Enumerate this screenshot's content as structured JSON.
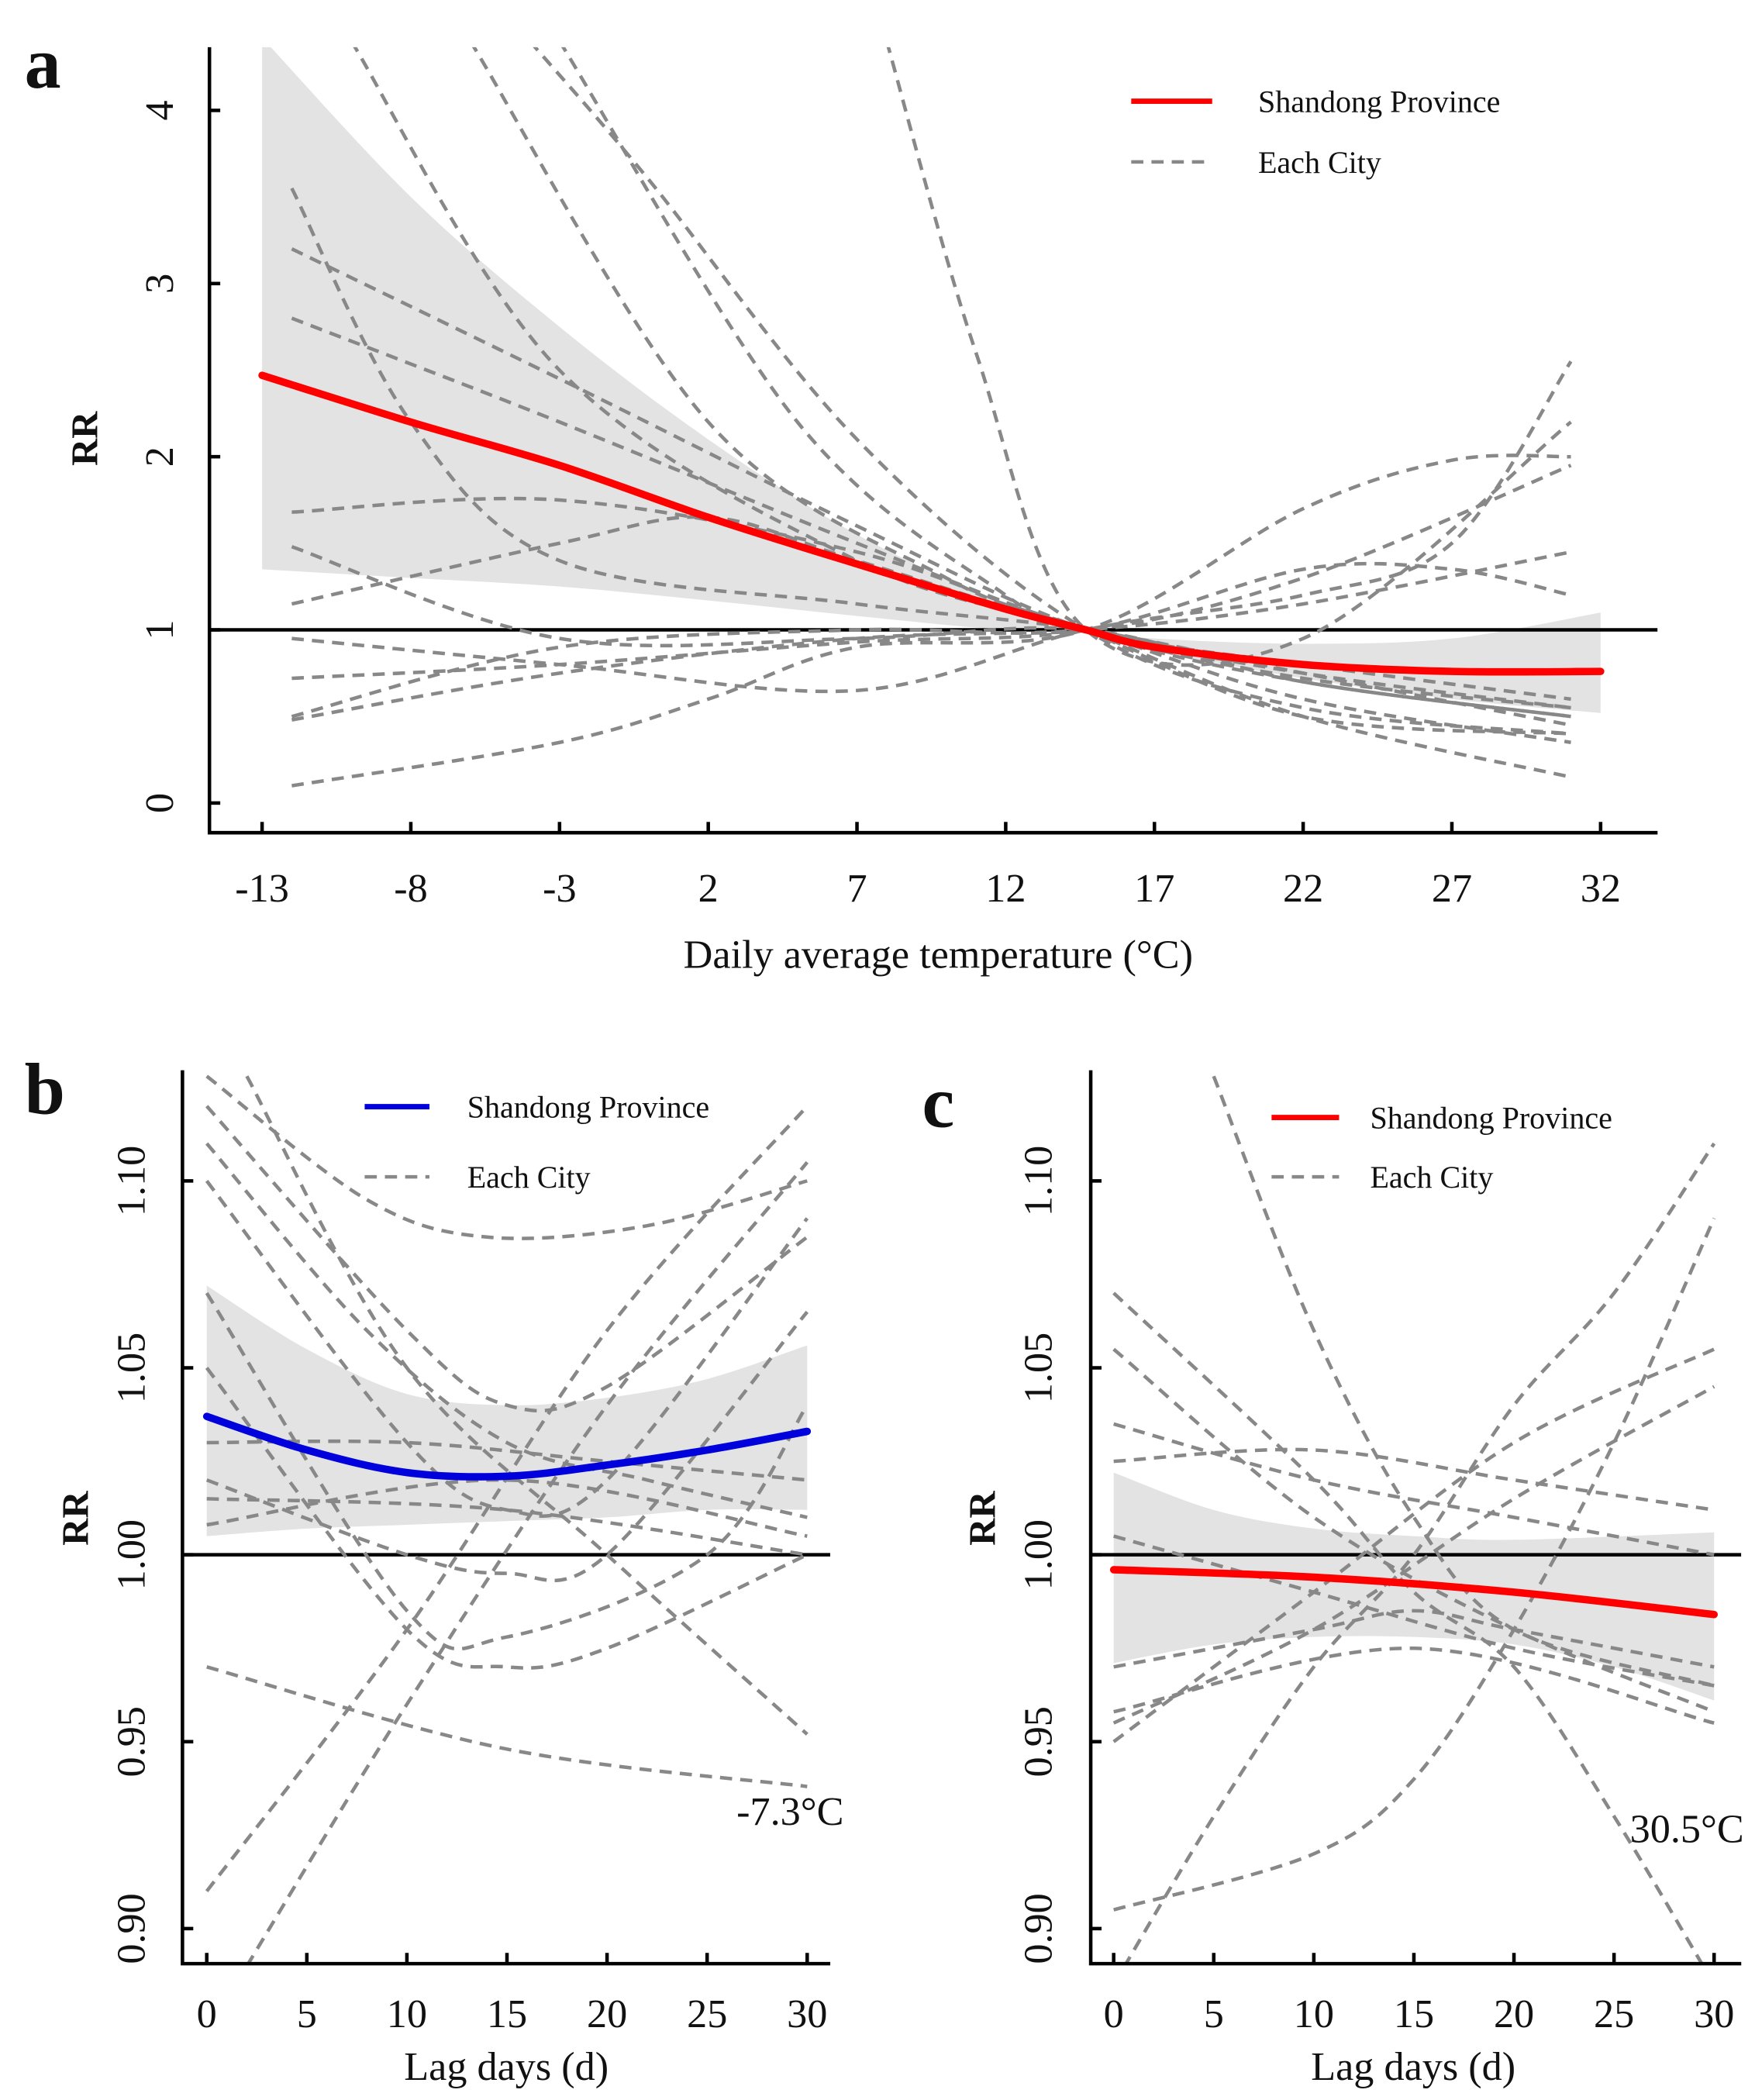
{
  "chart_data": [
    {
      "type": "line",
      "panel_letter": "a",
      "xlabel": "Daily average temperature  (°C)",
      "ylabel": "RR",
      "xticks": [
        "-13",
        "-8",
        "-3",
        "2",
        "7",
        "12",
        "17",
        "22",
        "27",
        "32"
      ],
      "xtick_values": [
        -13,
        -8,
        -3,
        2,
        7,
        12,
        17,
        22,
        27,
        32
      ],
      "yticks": [
        "0",
        "1",
        "2",
        "3",
        "4"
      ],
      "ytick_values": [
        0,
        1,
        2,
        3,
        4
      ],
      "xlim": [
        -14.8,
        33.8
      ],
      "ylim": [
        -0.17,
        4.42
      ],
      "reference_line": 1,
      "legend": {
        "position": "top-right",
        "main": "Shandong Province",
        "city": "Each City"
      },
      "main_color": "#ff0000",
      "main": [
        [
          -13,
          2.47
        ],
        [
          -8,
          2.2
        ],
        [
          -3,
          1.95
        ],
        [
          2,
          1.65
        ],
        [
          7,
          1.38
        ],
        [
          12,
          1.12
        ],
        [
          14.7,
          1.0
        ],
        [
          17,
          0.9
        ],
        [
          22,
          0.8
        ],
        [
          27,
          0.76
        ],
        [
          32,
          0.76
        ]
      ],
      "ci_upper": [
        [
          -13,
          4.42
        ],
        [
          -8,
          3.5
        ],
        [
          -3,
          2.75
        ],
        [
          2,
          2.1
        ],
        [
          7,
          1.55
        ],
        [
          12,
          1.15
        ],
        [
          14.7,
          1.0
        ],
        [
          17,
          0.95
        ],
        [
          22,
          0.92
        ],
        [
          27,
          0.95
        ],
        [
          32,
          1.1
        ]
      ],
      "ci_lower": [
        [
          -13,
          1.35
        ],
        [
          -8,
          1.3
        ],
        [
          -3,
          1.25
        ],
        [
          2,
          1.17
        ],
        [
          7,
          1.08
        ],
        [
          12,
          1.0
        ],
        [
          14.7,
          1.0
        ],
        [
          17,
          0.88
        ],
        [
          22,
          0.72
        ],
        [
          27,
          0.6
        ],
        [
          32,
          0.52
        ]
      ],
      "cities": [
        [
          [
            -12,
            3.55
          ],
          [
            -8,
            2.2
          ],
          [
            -3,
            1.4
          ],
          [
            7,
            1.15
          ],
          [
            14.7,
            1
          ],
          [
            22,
            0.75
          ],
          [
            31,
            0.45
          ]
        ],
        [
          [
            -12,
            3.2
          ],
          [
            -3,
            2.45
          ],
          [
            7,
            1.6
          ],
          [
            14.7,
            1
          ],
          [
            22,
            0.7
          ],
          [
            31,
            0.5
          ]
        ],
        [
          [
            -12,
            2.8
          ],
          [
            -3,
            2.2
          ],
          [
            7,
            1.5
          ],
          [
            14.7,
            1
          ],
          [
            22,
            0.72
          ],
          [
            31,
            0.55
          ]
        ],
        [
          [
            -12,
            1.68
          ],
          [
            -3,
            1.75
          ],
          [
            7,
            1.45
          ],
          [
            14.7,
            1
          ],
          [
            22,
            0.8
          ],
          [
            31,
            0.6
          ]
        ],
        [
          [
            -12,
            1.15
          ],
          [
            -3,
            1.5
          ],
          [
            2,
            1.65
          ],
          [
            7,
            1.4
          ],
          [
            14.7,
            1
          ],
          [
            22,
            0.75
          ],
          [
            31,
            0.55
          ]
        ],
        [
          [
            -12,
            0.5
          ],
          [
            -3,
            0.9
          ],
          [
            7,
            1.0
          ],
          [
            14.7,
            1
          ],
          [
            22,
            1.3
          ],
          [
            31,
            1.95
          ]
        ],
        [
          [
            -12,
            0.1
          ],
          [
            -3,
            0.35
          ],
          [
            2,
            0.6
          ],
          [
            7,
            0.9
          ],
          [
            14.7,
            1
          ],
          [
            22,
            1.7
          ],
          [
            27,
            1.98
          ],
          [
            31,
            2.0
          ]
        ],
        [
          [
            -12,
            0.72
          ],
          [
            -3,
            0.8
          ],
          [
            7,
            0.93
          ],
          [
            14.7,
            1
          ],
          [
            22,
            1.35
          ],
          [
            27,
            1.35
          ],
          [
            31,
            1.2
          ]
        ],
        [
          [
            -12,
            0.95
          ],
          [
            -3,
            0.8
          ],
          [
            7,
            0.65
          ],
          [
            14.7,
            1
          ],
          [
            22,
            1.2
          ],
          [
            27,
            1.5
          ],
          [
            31,
            2.55
          ]
        ],
        [
          [
            -12,
            1.48
          ],
          [
            -3,
            0.95
          ],
          [
            7,
            0.95
          ],
          [
            14.7,
            1
          ],
          [
            22,
            0.7
          ],
          [
            31,
            0.5
          ]
        ],
        [
          [
            -12,
            0.48
          ],
          [
            -3,
            0.75
          ],
          [
            7,
            0.95
          ],
          [
            14.7,
            1
          ],
          [
            22,
            1.15
          ],
          [
            31,
            1.45
          ]
        ],
        [
          [
            -10,
            4.4
          ],
          [
            -3,
            2.5
          ],
          [
            7,
            1.4
          ],
          [
            14.7,
            1
          ],
          [
            22,
            0.6
          ],
          [
            31,
            0.35
          ]
        ],
        [
          [
            -6,
            4.4
          ],
          [
            2,
            2.2
          ],
          [
            10,
            1.3
          ],
          [
            14.7,
            1
          ],
          [
            22,
            0.5
          ],
          [
            31,
            0.15
          ]
        ],
        [
          [
            -3,
            4.4
          ],
          [
            5,
            2.2
          ],
          [
            12,
            1.2
          ],
          [
            14.7,
            1
          ],
          [
            22,
            0.5
          ],
          [
            31,
            0.4
          ]
        ],
        [
          [
            -4,
            4.4
          ],
          [
            0,
            3.6
          ],
          [
            7,
            2.1
          ],
          [
            14.7,
            1
          ],
          [
            22,
            0.55
          ],
          [
            31,
            0.4
          ]
        ],
        [
          [
            8,
            4.4
          ],
          [
            11,
            2.6
          ],
          [
            14.7,
            1
          ],
          [
            22,
            0.95
          ],
          [
            31,
            2.2
          ]
        ]
      ]
    },
    {
      "type": "line",
      "panel_letter": "b",
      "xlabel": "Lag days (d)",
      "ylabel": "RR",
      "xticks": [
        "0",
        "5",
        "10",
        "15",
        "20",
        "25",
        "30"
      ],
      "xtick_values": [
        0,
        5,
        10,
        15,
        20,
        25,
        30
      ],
      "yticks": [
        "0.90",
        "0.95",
        "1.00",
        "1.05",
        "1.10"
      ],
      "ytick_values": [
        0.9,
        0.95,
        1.0,
        1.05,
        1.1
      ],
      "xlim": [
        -1.2,
        31.2
      ],
      "ylim": [
        0.89,
        1.129
      ],
      "reference_line": 1,
      "annotation": "-7.3°C",
      "legend": {
        "position": "top",
        "main": "Shandong Province",
        "city": "Each City"
      },
      "main_color": "#0000dd",
      "main": [
        [
          0,
          1.037
        ],
        [
          5,
          1.028
        ],
        [
          10,
          1.022
        ],
        [
          15,
          1.021
        ],
        [
          20,
          1.024
        ],
        [
          25,
          1.028
        ],
        [
          30,
          1.033
        ]
      ],
      "ci_upper": [
        [
          0,
          1.072
        ],
        [
          5,
          1.055
        ],
        [
          10,
          1.043
        ],
        [
          15,
          1.04
        ],
        [
          20,
          1.042
        ],
        [
          25,
          1.047
        ],
        [
          30,
          1.056
        ]
      ],
      "ci_lower": [
        [
          0,
          1.005
        ],
        [
          5,
          1.007
        ],
        [
          10,
          1.008
        ],
        [
          15,
          1.009
        ],
        [
          20,
          1.01
        ],
        [
          25,
          1.012
        ],
        [
          30,
          1.012
        ]
      ],
      "cities": [
        [
          [
            0,
            1.128
          ],
          [
            8,
            1.095
          ],
          [
            14,
            1.085
          ],
          [
            22,
            1.088
          ],
          [
            30,
            1.1
          ]
        ],
        [
          [
            0,
            1.12
          ],
          [
            10,
            1.06
          ],
          [
            15,
            1.04
          ],
          [
            20,
            1.045
          ],
          [
            30,
            1.085
          ]
        ],
        [
          [
            0,
            1.11
          ],
          [
            8,
            1.06
          ],
          [
            15,
            1.03
          ],
          [
            22,
            1.02
          ],
          [
            30,
            1.01
          ]
        ],
        [
          [
            2,
            1.128
          ],
          [
            10,
            1.05
          ],
          [
            20,
            1.0
          ],
          [
            30,
            0.952
          ]
        ],
        [
          [
            0,
            0.97
          ],
          [
            15,
            0.948
          ],
          [
            30,
            0.938
          ]
        ],
        [
          [
            0,
            0.91
          ],
          [
            10,
            0.98
          ],
          [
            20,
            1.06
          ],
          [
            30,
            1.12
          ]
        ],
        [
          [
            2,
            0.89
          ],
          [
            10,
            0.96
          ],
          [
            20,
            1.04
          ],
          [
            30,
            1.105
          ]
        ],
        [
          [
            0,
            1.05
          ],
          [
            10,
            0.98
          ],
          [
            15,
            0.97
          ],
          [
            20,
            0.975
          ],
          [
            30,
            1.0
          ]
        ],
        [
          [
            0,
            1.07
          ],
          [
            10,
            0.985
          ],
          [
            15,
            0.978
          ],
          [
            25,
            1.0
          ],
          [
            30,
            1.04
          ]
        ],
        [
          [
            0,
            1.03
          ],
          [
            10,
            1.03
          ],
          [
            20,
            1.025
          ],
          [
            30,
            1.02
          ]
        ],
        [
          [
            0,
            1.008
          ],
          [
            15,
            1.02
          ],
          [
            30,
            1.005
          ]
        ],
        [
          [
            0,
            1.015
          ],
          [
            15,
            1.012
          ],
          [
            30,
            1.0
          ]
        ],
        [
          [
            0,
            1.02
          ],
          [
            10,
            1.0
          ],
          [
            15,
            0.995
          ],
          [
            20,
            1.0
          ],
          [
            30,
            1.065
          ]
        ],
        [
          [
            0,
            1.1
          ],
          [
            10,
            1.03
          ],
          [
            15,
            1.012
          ],
          [
            20,
            1.02
          ],
          [
            30,
            1.09
          ]
        ]
      ]
    },
    {
      "type": "line",
      "panel_letter": "c",
      "xlabel": "Lag days (d)",
      "ylabel": "RR",
      "xticks": [
        "0",
        "5",
        "10",
        "15",
        "20",
        "25",
        "30"
      ],
      "xtick_values": [
        0,
        5,
        10,
        15,
        20,
        25,
        30
      ],
      "yticks": [
        "0.90",
        "0.95",
        "1.00",
        "1.05",
        "1.10"
      ],
      "ytick_values": [
        0.9,
        0.95,
        1.0,
        1.05,
        1.1
      ],
      "xlim": [
        -1.2,
        31.2
      ],
      "ylim": [
        0.89,
        1.129
      ],
      "reference_line": 1,
      "annotation": "30.5°C",
      "legend": {
        "position": "top-right",
        "main": "Shandong Province",
        "city": "Each City"
      },
      "main_color": "#ff0000",
      "main": [
        [
          0,
          0.996
        ],
        [
          10,
          0.994
        ],
        [
          20,
          0.99
        ],
        [
          30,
          0.984
        ]
      ],
      "ci_upper": [
        [
          0,
          1.022
        ],
        [
          5,
          1.012
        ],
        [
          10,
          1.007
        ],
        [
          15,
          1.005
        ],
        [
          20,
          1.004
        ],
        [
          30,
          1.006
        ]
      ],
      "ci_lower": [
        [
          0,
          0.971
        ],
        [
          5,
          0.976
        ],
        [
          10,
          0.978
        ],
        [
          15,
          0.978
        ],
        [
          20,
          0.976
        ],
        [
          25,
          0.97
        ],
        [
          30,
          0.961
        ]
      ],
      "cities": [
        [
          [
            5,
            1.128
          ],
          [
            10,
            1.06
          ],
          [
            15,
            1.01
          ],
          [
            20,
            0.98
          ],
          [
            30,
            0.965
          ]
        ],
        [
          [
            0,
            1.07
          ],
          [
            10,
            1.02
          ],
          [
            15,
            0.99
          ],
          [
            20,
            0.97
          ],
          [
            25,
            0.93
          ],
          [
            30,
            0.885
          ]
        ],
        [
          [
            0,
            0.885
          ],
          [
            5,
            0.93
          ],
          [
            10,
            0.97
          ],
          [
            15,
            1.0
          ],
          [
            20,
            1.04
          ],
          [
            25,
            1.07
          ],
          [
            30,
            1.11
          ]
        ],
        [
          [
            0,
            0.905
          ],
          [
            10,
            0.92
          ],
          [
            15,
            0.94
          ],
          [
            20,
            0.98
          ],
          [
            25,
            1.03
          ],
          [
            30,
            1.09
          ]
        ],
        [
          [
            0,
            0.95
          ],
          [
            10,
            0.99
          ],
          [
            20,
            1.03
          ],
          [
            30,
            1.055
          ]
        ],
        [
          [
            0,
            0.955
          ],
          [
            10,
            0.98
          ],
          [
            20,
            1.015
          ],
          [
            30,
            1.045
          ]
        ],
        [
          [
            0,
            1.035
          ],
          [
            10,
            1.02
          ],
          [
            20,
            1.01
          ],
          [
            30,
            1.0
          ]
        ],
        [
          [
            0,
            1.025
          ],
          [
            10,
            1.028
          ],
          [
            20,
            1.02
          ],
          [
            30,
            1.012
          ]
        ],
        [
          [
            0,
            0.97
          ],
          [
            10,
            0.98
          ],
          [
            15,
            0.985
          ],
          [
            20,
            0.98
          ],
          [
            30,
            0.97
          ]
        ],
        [
          [
            0,
            0.958
          ],
          [
            15,
            0.975
          ],
          [
            30,
            0.955
          ]
        ],
        [
          [
            0,
            1.055
          ],
          [
            10,
            1.01
          ],
          [
            20,
            0.98
          ],
          [
            30,
            0.958
          ]
        ],
        [
          [
            0,
            1.005
          ],
          [
            10,
            0.99
          ],
          [
            20,
            0.975
          ],
          [
            30,
            0.965
          ]
        ]
      ]
    }
  ]
}
